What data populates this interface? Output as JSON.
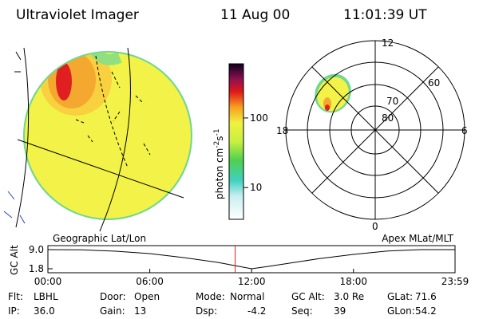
{
  "header": {
    "title": "Ultraviolet Imager",
    "date": "11 Aug 00",
    "time": "11:01:39 UT"
  },
  "colorbar": {
    "label": {
      "text": "photon cm",
      "sup1": "-2",
      "mid": "s",
      "sup2": "-1"
    },
    "scale": "log",
    "lim": [
      3.5,
      600
    ],
    "ticks": [
      10,
      100
    ]
  },
  "polar": {
    "mlt_labels": [
      "12",
      "18",
      "6",
      "0"
    ],
    "mlat_labels": [
      "80",
      "70",
      "60"
    ]
  },
  "projections": {
    "left": "Geographic Lat/Lon",
    "right": "Apex MLat/MLT"
  },
  "altitude_plot": {
    "ylabel": "GC Alt",
    "ylim": [
      0.3,
      10.5
    ],
    "yticks": [
      {
        "value": 9.0,
        "label": "9.0"
      },
      {
        "value": 1.8,
        "label": "1.8"
      }
    ],
    "xlim": [
      0,
      23.983
    ],
    "xticks": [
      {
        "value": 0,
        "label": "00:00"
      },
      {
        "value": 6,
        "label": "06:00"
      },
      {
        "value": 12,
        "label": "12:00"
      },
      {
        "value": 18,
        "label": "18:00"
      },
      {
        "value": 23.983,
        "label": "23:59"
      }
    ],
    "x": [
      0,
      2,
      4,
      6,
      8,
      10,
      11,
      12,
      13,
      14,
      16,
      18,
      20,
      22,
      23.983
    ],
    "values": [
      9.0,
      8.9,
      8.4,
      7.5,
      6.0,
      4.2,
      3.0,
      1.8,
      2.7,
      3.7,
      5.6,
      7.2,
      8.5,
      9.0,
      9.0
    ],
    "current_time": 11.028
  },
  "footer": [
    [
      {
        "label": "Flt:",
        "value": "LBHL"
      },
      {
        "label": "Door:",
        "value": "Open"
      },
      {
        "label": "Mode:",
        "value": "Normal"
      },
      {
        "label": "GC Alt:",
        "value": "3.0 Re"
      },
      {
        "label": "GLat:",
        "value": "71.6"
      }
    ],
    [
      {
        "label": "IP:",
        "value": "36.0"
      },
      {
        "label": "Gain:",
        "value": "13"
      },
      {
        "label": "Dsp:",
        "value": "-4.2"
      },
      {
        "label": "Seq:",
        "value": "39"
      },
      {
        "label": "GLon:",
        "value": "54.2"
      }
    ]
  ]
}
